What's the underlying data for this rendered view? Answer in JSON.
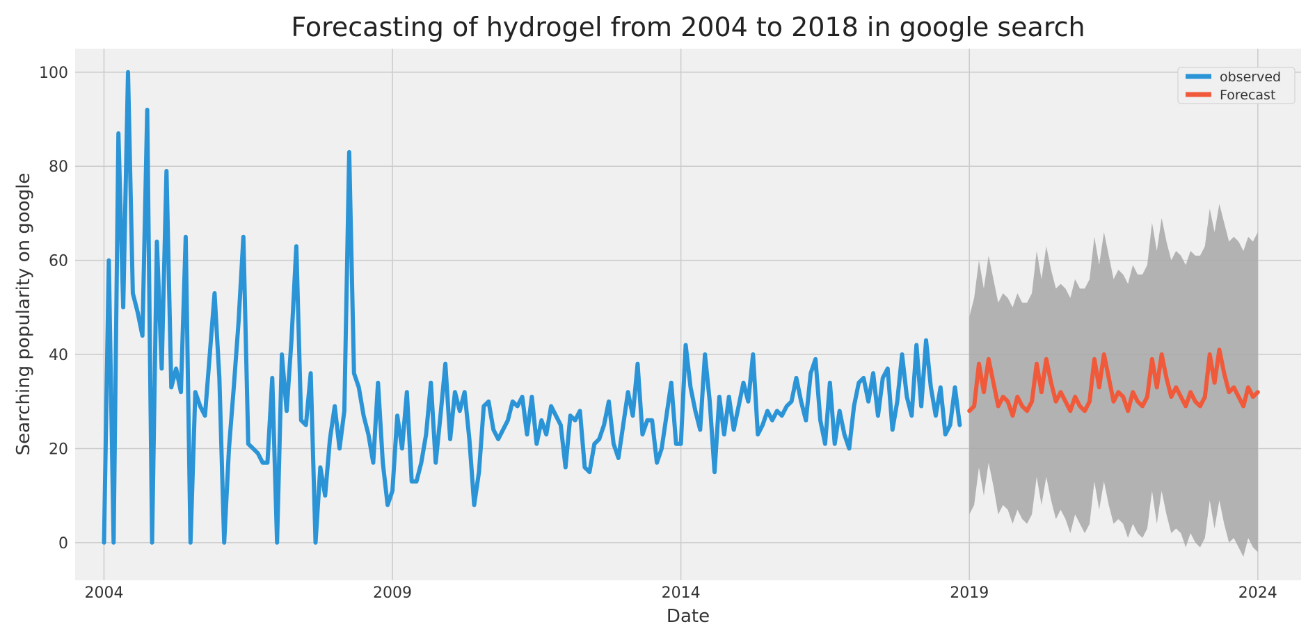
{
  "chart_data": {
    "type": "line",
    "title": "Forecasting of hydrogel from 2004 to 2018 in google search",
    "xlabel": "Date",
    "ylabel": "Searching popularity on google",
    "xlim": [
      2003.5,
      2024.75
    ],
    "ylim": [
      -8,
      105
    ],
    "x_ticks": [
      2004,
      2009,
      2014,
      2019,
      2024
    ],
    "y_ticks": [
      0,
      20,
      40,
      60,
      80,
      100
    ],
    "grid": true,
    "legend_position": "top-right",
    "colors": {
      "observed": "#2b94d6",
      "forecast": "#f05a3a",
      "confidence": "#a7a7a7",
      "background": "#f0f0f0",
      "grid": "#cbcbcb"
    },
    "series": [
      {
        "name": "observed",
        "start": "2004-01",
        "frequency": "monthly",
        "values": [
          0,
          60,
          0,
          87,
          50,
          100,
          53,
          49,
          44,
          92,
          0,
          64,
          37,
          79,
          33,
          37,
          32,
          65,
          0,
          32,
          29,
          27,
          40,
          53,
          35,
          0,
          20,
          33,
          47,
          65,
          21,
          20,
          19,
          17,
          17,
          35,
          0,
          40,
          28,
          43,
          63,
          26,
          25,
          36,
          0,
          16,
          10,
          22,
          29,
          20,
          28,
          83,
          36,
          33,
          27,
          23,
          17,
          34,
          17,
          8,
          11,
          27,
          20,
          32,
          13,
          13,
          17,
          23,
          34,
          17,
          27,
          38,
          22,
          32,
          28,
          32,
          22,
          8,
          15,
          29,
          30,
          24,
          22,
          24,
          26,
          30,
          29,
          31,
          23,
          31,
          21,
          26,
          23,
          29,
          27,
          25,
          16,
          27,
          26,
          28,
          16,
          15,
          21,
          22,
          25,
          30,
          21,
          18,
          25,
          32,
          27,
          38,
          23,
          26,
          26,
          17,
          20,
          27,
          34,
          21,
          21,
          42,
          33,
          28,
          24,
          40,
          30,
          15,
          31,
          23,
          31,
          24,
          29,
          34,
          30,
          40,
          23,
          25,
          28,
          26,
          28,
          27,
          29,
          30,
          35,
          30,
          26,
          36,
          39,
          26,
          21,
          34,
          21,
          28,
          23,
          20,
          29,
          34,
          35,
          30,
          36,
          27,
          35,
          37,
          24,
          30,
          40,
          31,
          27,
          42,
          29,
          43,
          33,
          27,
          33,
          23,
          25,
          33,
          25
        ],
        "note": ""
      },
      {
        "name": "Forecast",
        "start": "2019-01",
        "frequency": "monthly",
        "values": [
          28,
          29,
          38,
          32,
          39,
          34,
          29,
          31,
          30,
          27,
          31,
          29,
          28,
          30,
          38,
          32,
          39,
          34,
          30,
          32,
          30,
          28,
          31,
          29,
          28,
          30,
          39,
          33,
          40,
          35,
          30,
          32,
          31,
          28,
          32,
          30,
          29,
          31,
          39,
          33,
          40,
          35,
          31,
          33,
          31,
          29,
          32,
          30,
          29,
          31,
          40,
          34,
          41,
          36,
          32,
          33,
          31,
          29,
          33,
          31,
          32
        ],
        "upper": [
          48,
          52,
          60,
          54,
          61,
          56,
          51,
          53,
          52,
          50,
          53,
          51,
          51,
          53,
          62,
          56,
          63,
          58,
          54,
          55,
          54,
          52,
          56,
          54,
          54,
          56,
          65,
          59,
          66,
          61,
          56,
          58,
          57,
          55,
          59,
          57,
          57,
          59,
          68,
          62,
          69,
          64,
          60,
          62,
          61,
          59,
          62,
          61,
          61,
          63,
          71,
          66,
          72,
          68,
          64,
          65,
          64,
          62,
          65,
          64,
          66
        ],
        "lower": [
          6,
          8,
          16,
          10,
          17,
          12,
          6,
          8,
          7,
          4,
          7,
          5,
          4,
          6,
          14,
          8,
          14,
          9,
          5,
          7,
          5,
          2,
          6,
          4,
          2,
          4,
          13,
          7,
          13,
          8,
          4,
          5,
          4,
          1,
          4,
          2,
          1,
          3,
          11,
          4,
          11,
          6,
          2,
          3,
          2,
          -1,
          2,
          0,
          -1,
          1,
          9,
          3,
          9,
          4,
          0,
          1,
          -1,
          -3,
          1,
          -1,
          -2
        ]
      }
    ]
  }
}
